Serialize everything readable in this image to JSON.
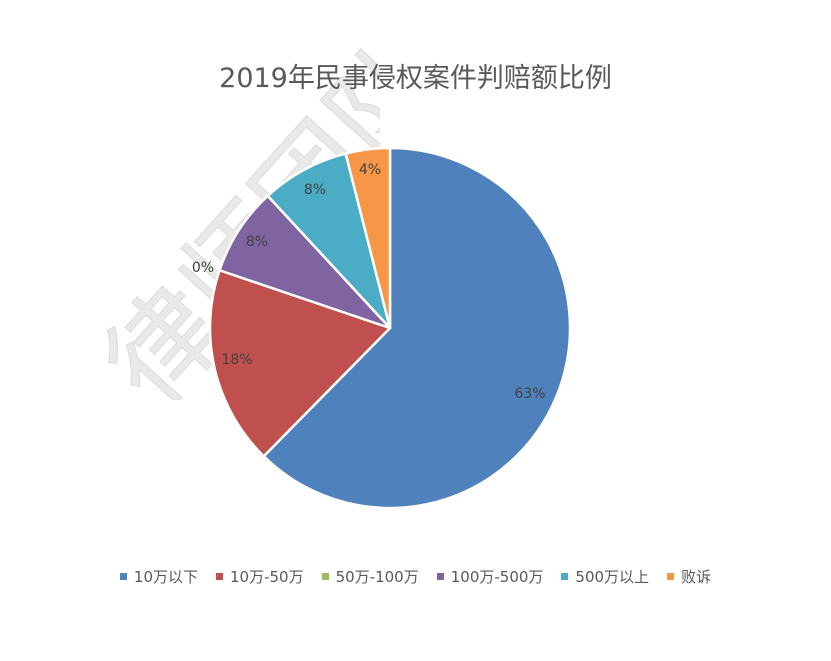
{
  "watermark": {
    "text": "律师团队",
    "color": "#e6e6e6"
  },
  "chart_data": {
    "type": "pie",
    "title": "2019年民事侵权案件判赔额比例",
    "slices": [
      {
        "label": "10万以下",
        "value": 63,
        "data_label": "63%",
        "color": "#4f81bd"
      },
      {
        "label": "10万-50万",
        "value": 18,
        "data_label": "18%",
        "color": "#c0504d"
      },
      {
        "label": "50万-100万",
        "value": 0,
        "data_label": "0%",
        "color": "#9bbb59"
      },
      {
        "label": "100万-500万",
        "value": 8,
        "data_label": "8%",
        "color": "#8064a2"
      },
      {
        "label": "500万以上",
        "value": 8,
        "data_label": "8%",
        "color": "#4bacc6"
      },
      {
        "label": "败诉",
        "value": 4,
        "data_label": "4%",
        "color": "#f79646"
      }
    ],
    "start_angle_deg": 0,
    "direction": "clockwise",
    "legend_position": "bottom",
    "data_label_color": "#404040"
  }
}
